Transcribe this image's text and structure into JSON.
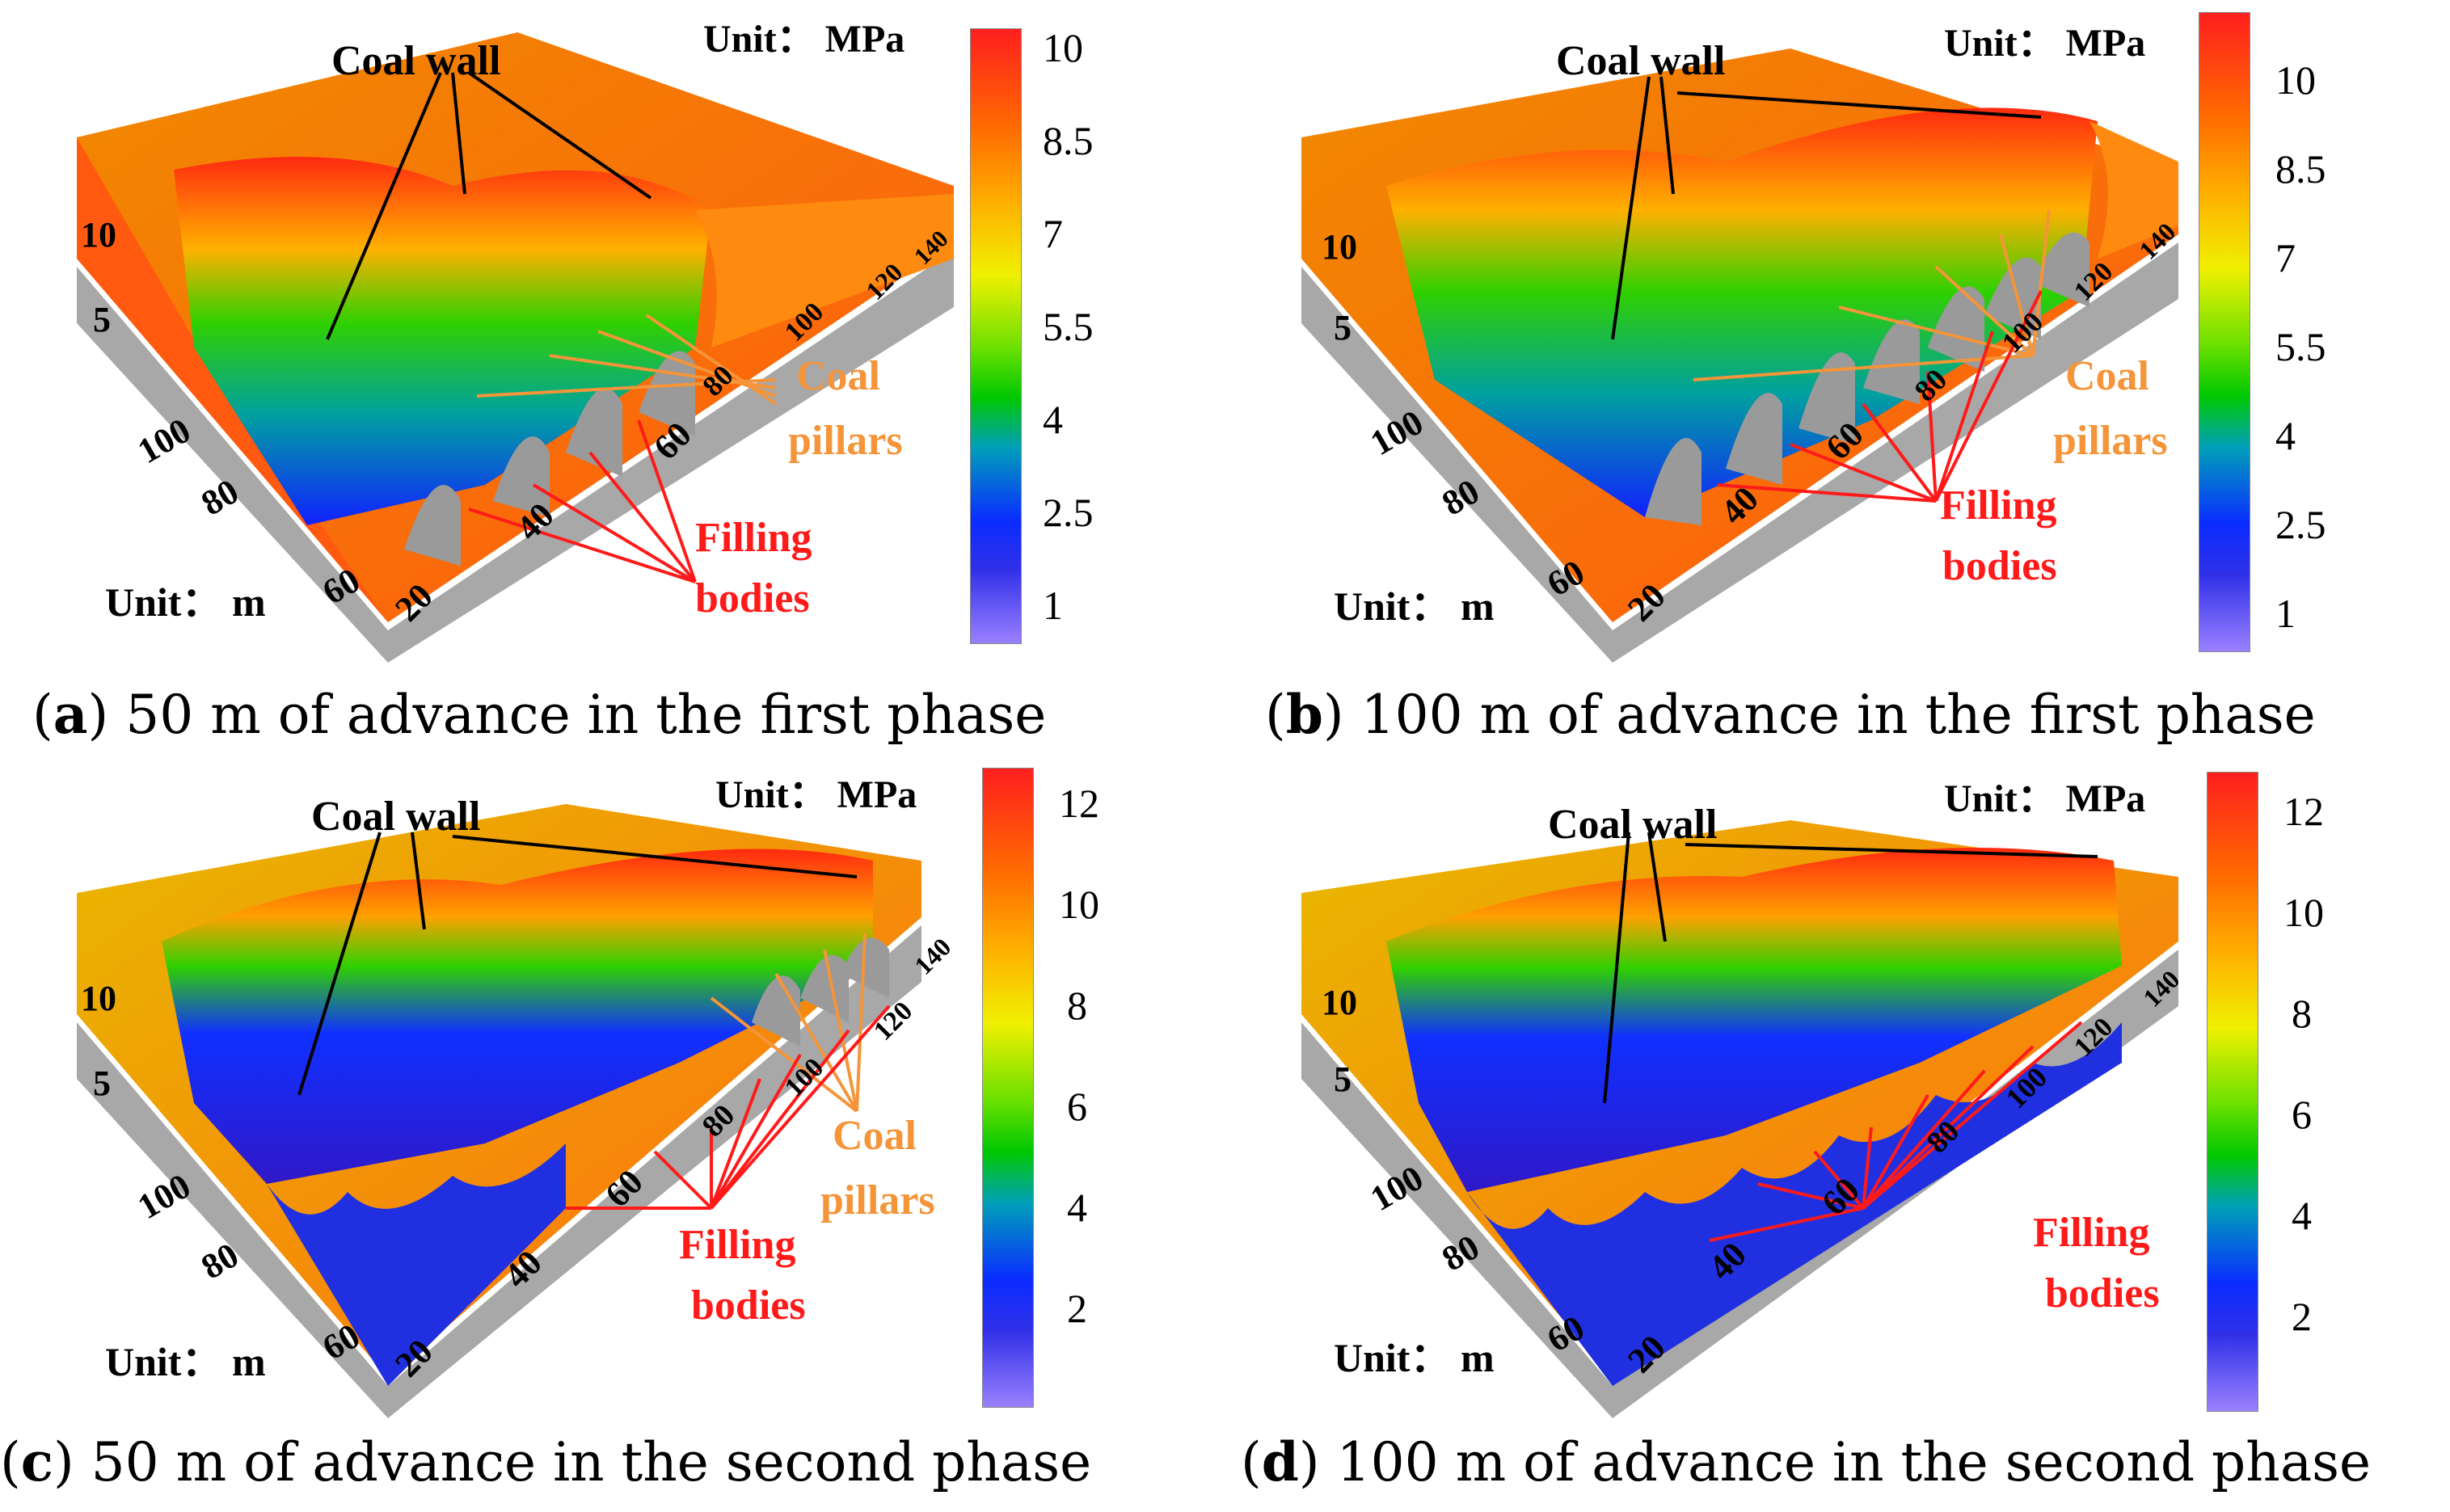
{
  "panels": [
    {
      "id": "a",
      "caption_letter": "a",
      "caption_text": " 50 m of advance in the first phase",
      "unit_stress": "Unit： MPa",
      "unit_length": "Unit： m",
      "coal_wall": "Coal wall",
      "coal_pillars_1": "Coal",
      "coal_pillars_2": "pillars",
      "filling_1": "Filling",
      "filling_2": "bodies",
      "colorbar_ticks": [
        "10",
        "8.5",
        "7",
        "5.5",
        "4",
        "2.5",
        "1"
      ],
      "z_ticks": [
        "10",
        "5"
      ],
      "y_ticks": [
        "100",
        "80",
        "60"
      ],
      "x_ticks": [
        "20",
        "40",
        "60",
        "80",
        "100",
        "120",
        "140"
      ]
    },
    {
      "id": "b",
      "caption_letter": "b",
      "caption_text": " 100 m of advance in the first phase",
      "unit_stress": "Unit： MPa",
      "unit_length": "Unit： m",
      "coal_wall": "Coal wall",
      "coal_pillars_1": "Coal",
      "coal_pillars_2": "pillars",
      "filling_1": "Filling",
      "filling_2": "bodies",
      "colorbar_ticks": [
        "10",
        "8.5",
        "7",
        "5.5",
        "4",
        "2.5",
        "1"
      ],
      "z_ticks": [
        "10",
        "5"
      ],
      "y_ticks": [
        "100",
        "80",
        "60"
      ],
      "x_ticks": [
        "20",
        "40",
        "60",
        "80",
        "100",
        "120",
        "140"
      ]
    },
    {
      "id": "c",
      "caption_letter": "c",
      "caption_text": " 50 m of advance in the second phase",
      "unit_stress": "Unit： MPa",
      "unit_length": "Unit： m",
      "coal_wall": "Coal wall",
      "coal_pillars_1": "Coal",
      "coal_pillars_2": "pillars",
      "filling_1": "Filling",
      "filling_2": "bodies",
      "colorbar_ticks": [
        "12",
        "10",
        "8",
        "6",
        "4",
        "2"
      ],
      "z_ticks": [
        "10",
        "5"
      ],
      "y_ticks": [
        "100",
        "80",
        "60"
      ],
      "x_ticks": [
        "20",
        "40",
        "60",
        "80",
        "100",
        "120",
        "140"
      ]
    },
    {
      "id": "d",
      "caption_letter": "d",
      "caption_text": " 100 m of advance in the second phase",
      "unit_stress": "Unit： MPa",
      "unit_length": "Unit： m",
      "coal_wall": "Coal wall",
      "filling_1": "Filling",
      "filling_2": "bodies",
      "colorbar_ticks": [
        "12",
        "10",
        "8",
        "6",
        "4",
        "2"
      ],
      "z_ticks": [
        "10",
        "5"
      ],
      "y_ticks": [
        "100",
        "80",
        "60"
      ],
      "x_ticks": [
        "20",
        "40",
        "60",
        "80",
        "100",
        "120",
        "140"
      ]
    }
  ],
  "colors": {
    "high_stress": "#ff1f1f",
    "mid_stress": "#00c800",
    "low_stress": "#0a2cff",
    "block_side": "#a8a8a8",
    "label_orange": "#f5953a",
    "label_red": "#ff1a1a"
  }
}
